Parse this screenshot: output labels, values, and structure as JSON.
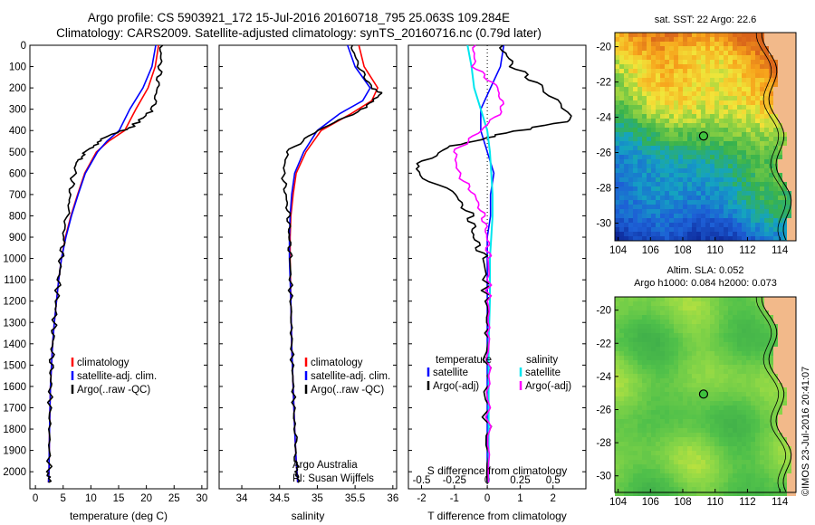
{
  "header": {
    "title": "Argo profile: CS 5903921_172 15-Jul-2016 20160718_795 25.063S 109.284E",
    "subtitle": "Climatology: CARS2009. Satellite-adjusted climatology: synTS_20160716.nc (0.79d later)"
  },
  "colors": {
    "climatology": "#ff0000",
    "satellite": "#0000ff",
    "argo": "#000000",
    "sat_s": "#00e5ee",
    "argo_s": "#ff00ff",
    "land": "#f2b98a"
  },
  "chart_data": [
    {
      "type": "line",
      "id": "temperature-panel",
      "xlabel": "temperature (deg C)",
      "ylabel": "",
      "xlim": [
        -1,
        31
      ],
      "ylim": [
        2080,
        0
      ],
      "xticks": [
        "0",
        "5",
        "10",
        "15",
        "20",
        "25",
        "30"
      ],
      "yticks": [
        "0",
        "100",
        "200",
        "300",
        "400",
        "500",
        "600",
        "700",
        "800",
        "900",
        "1000",
        "1100",
        "1200",
        "1300",
        "1400",
        "1500",
        "1600",
        "1700",
        "1800",
        "1900",
        "2000"
      ],
      "legend": [
        "climatology",
        "satellite-adj. clim.",
        "Argo(..raw -QC)"
      ],
      "legend_position": "bottom-center",
      "series": [
        {
          "name": "climatology",
          "x": [
            22.2,
            21.6,
            20.3,
            18.1,
            16.1,
            13.2,
            11.0,
            8.9,
            7.6,
            6.4,
            5.4,
            4.7,
            4.2,
            3.8,
            3.4,
            3.1,
            2.9,
            2.7,
            2.55,
            2.45,
            2.35
          ],
          "y": [
            0,
            100,
            200,
            300,
            400,
            450,
            500,
            600,
            700,
            800,
            900,
            1000,
            1100,
            1200,
            1300,
            1400,
            1500,
            1600,
            1800,
            2000,
            2050
          ]
        },
        {
          "name": "satellite-adj. clim.",
          "x": [
            21.7,
            21.0,
            19.4,
            17.0,
            15.1,
            12.9,
            11.2,
            9.0,
            7.7,
            6.5,
            5.5,
            4.7,
            4.2,
            3.8,
            3.4,
            3.1,
            2.9,
            2.7,
            2.55,
            2.45,
            2.35
          ],
          "y": [
            0,
            100,
            200,
            300,
            400,
            450,
            500,
            600,
            700,
            800,
            900,
            1000,
            1100,
            1200,
            1300,
            1400,
            1500,
            1600,
            1800,
            2000,
            2050
          ]
        },
        {
          "name": "Argo(..raw -QC)",
          "x": [
            22.7,
            22.5,
            22.0,
            21.2,
            17.5,
            12.0,
            9.0,
            7.4,
            6.6,
            5.9,
            5.2,
            4.6,
            4.2,
            3.8,
            3.4,
            3.1,
            2.9,
            2.7,
            2.55,
            2.45,
            2.35
          ],
          "y": [
            0,
            100,
            200,
            300,
            380,
            440,
            500,
            550,
            650,
            750,
            900,
            1000,
            1100,
            1200,
            1300,
            1400,
            1500,
            1600,
            1800,
            2000,
            2050
          ]
        }
      ]
    },
    {
      "type": "line",
      "id": "salinity-panel",
      "xlabel": "salinity",
      "ylabel": "",
      "xlim": [
        33.7,
        36.05
      ],
      "ylim": [
        2080,
        0
      ],
      "xticks": [
        "34",
        "34.5",
        "35",
        "35.5",
        "36"
      ],
      "legend": [
        "climatology",
        "satellite-adj. clim.",
        "Argo(..raw -QC)"
      ],
      "legend_position": "bottom-center",
      "annotation": [
        "Argo Australia",
        "PI: Susan Wijffels"
      ],
      "series": [
        {
          "name": "climatology",
          "x": [
            35.55,
            35.62,
            35.8,
            35.72,
            35.45,
            35.05,
            34.85,
            34.72,
            34.68,
            34.65,
            34.64,
            34.64,
            34.65,
            34.66,
            34.68,
            34.7,
            34.72,
            34.73,
            34.74
          ],
          "y": [
            0,
            100,
            200,
            260,
            320,
            400,
            500,
            600,
            700,
            800,
            900,
            1000,
            1200,
            1400,
            1600,
            1800,
            1950,
            2000,
            2050
          ]
        },
        {
          "name": "satellite-adj. clim.",
          "x": [
            35.4,
            35.5,
            35.7,
            35.6,
            35.3,
            35.0,
            34.82,
            34.7,
            34.66,
            34.64,
            34.63,
            34.63,
            34.65,
            34.66,
            34.68,
            34.7,
            34.72,
            34.73,
            34.74
          ],
          "y": [
            0,
            100,
            200,
            260,
            320,
            400,
            500,
            600,
            700,
            800,
            900,
            1000,
            1200,
            1400,
            1600,
            1800,
            1950,
            2000,
            2050
          ]
        },
        {
          "name": "Argo(..raw -QC)",
          "x": [
            35.45,
            35.55,
            35.72,
            35.85,
            35.6,
            35.0,
            34.6,
            34.55,
            34.58,
            34.62,
            34.63,
            34.64,
            34.65,
            34.66,
            34.68,
            34.7,
            34.72,
            34.73,
            34.74
          ],
          "y": [
            0,
            100,
            200,
            225,
            300,
            400,
            500,
            600,
            700,
            800,
            900,
            1000,
            1200,
            1400,
            1600,
            1800,
            1950,
            2000,
            2050
          ]
        }
      ]
    },
    {
      "type": "line",
      "id": "difference-panel",
      "xlabel": "T difference from climatology",
      "xlabel_top": "S difference from climatology",
      "xlim": [
        -2.4,
        3.0
      ],
      "ylim": [
        2080,
        0
      ],
      "xticks": [
        "-2",
        "-1",
        "0",
        "1",
        "2"
      ],
      "xticks_top": [
        "-0.5",
        "-0.25",
        "0",
        "0.25",
        "0.5"
      ],
      "legend_temperature": {
        "heading": "temperature",
        "items": [
          "satellite",
          "Argo(-adj)"
        ]
      },
      "legend_salinity": {
        "heading": "salinity",
        "items": [
          "satellite",
          "Argo(-adj)"
        ]
      },
      "series": [
        {
          "name": "temperature satellite",
          "x": [
            0.5,
            0.4,
            0.1,
            -0.2,
            -0.2,
            0.0,
            0.2,
            0.1,
            0.1,
            0.0,
            0.0,
            0.0,
            0.0,
            0.0,
            0.0
          ],
          "y": [
            0,
            100,
            200,
            300,
            400,
            500,
            600,
            700,
            800,
            900,
            1000,
            1200,
            1400,
            1700,
            2050
          ]
        },
        {
          "name": "temperature Argo(-adj)",
          "x": [
            0.4,
            0.8,
            1.7,
            2.6,
            0.3,
            -1.2,
            -2.3,
            -1.0,
            -0.5,
            -0.4,
            -0.1,
            0.0,
            0.0,
            0.0,
            0.0
          ],
          "y": [
            0,
            100,
            200,
            350,
            420,
            480,
            580,
            700,
            800,
            900,
            1000,
            1200,
            1400,
            1700,
            2050
          ]
        },
        {
          "name": "salinity satellite",
          "x": [
            -0.15,
            -0.12,
            -0.1,
            -0.05,
            0.0,
            0.02,
            0.03,
            0.04,
            0.04,
            0.03,
            0.02,
            0.02,
            0.01,
            0.01,
            0.01
          ],
          "y": [
            0,
            100,
            200,
            300,
            400,
            500,
            600,
            700,
            800,
            900,
            1000,
            1200,
            1400,
            1700,
            2050
          ]
        },
        {
          "name": "salinity Argo(-adj)",
          "x": [
            -0.1,
            -0.1,
            0.08,
            0.12,
            -0.05,
            -0.25,
            -0.22,
            -0.1,
            -0.03,
            0.0,
            0.01,
            0.01,
            0.01,
            0.01,
            0.01
          ],
          "y": [
            0,
            100,
            200,
            300,
            400,
            500,
            600,
            700,
            800,
            900,
            1000,
            1200,
            1400,
            1700,
            2050
          ]
        }
      ]
    },
    {
      "type": "heatmap",
      "id": "sst-map",
      "title": "sat. SST: 22  Argo: 22.6",
      "xlim": [
        103.8,
        115
      ],
      "ylim": [
        -31,
        -19.2
      ],
      "xticks": [
        "104",
        "106",
        "108",
        "110",
        "112",
        "114"
      ],
      "yticks": [
        "-20",
        "-22",
        "-24",
        "-26",
        "-28",
        "-30"
      ],
      "marker": {
        "lon": 109.284,
        "lat": -25.063
      }
    },
    {
      "type": "heatmap",
      "id": "sla-map",
      "title": "Altim. SLA: 0.052",
      "subtitle": "Argo h1000: 0.084 h2000: 0.073",
      "xlim": [
        103.8,
        115
      ],
      "ylim": [
        -31,
        -19.2
      ],
      "xticks": [
        "104",
        "106",
        "108",
        "110",
        "112",
        "114"
      ],
      "yticks": [
        "-20",
        "-22",
        "-24",
        "-26",
        "-28",
        "-30"
      ],
      "marker": {
        "lon": 109.284,
        "lat": -25.063
      }
    }
  ],
  "footer": {
    "stamp": "©IMOS 23-Jul-2016 20:41:07"
  }
}
